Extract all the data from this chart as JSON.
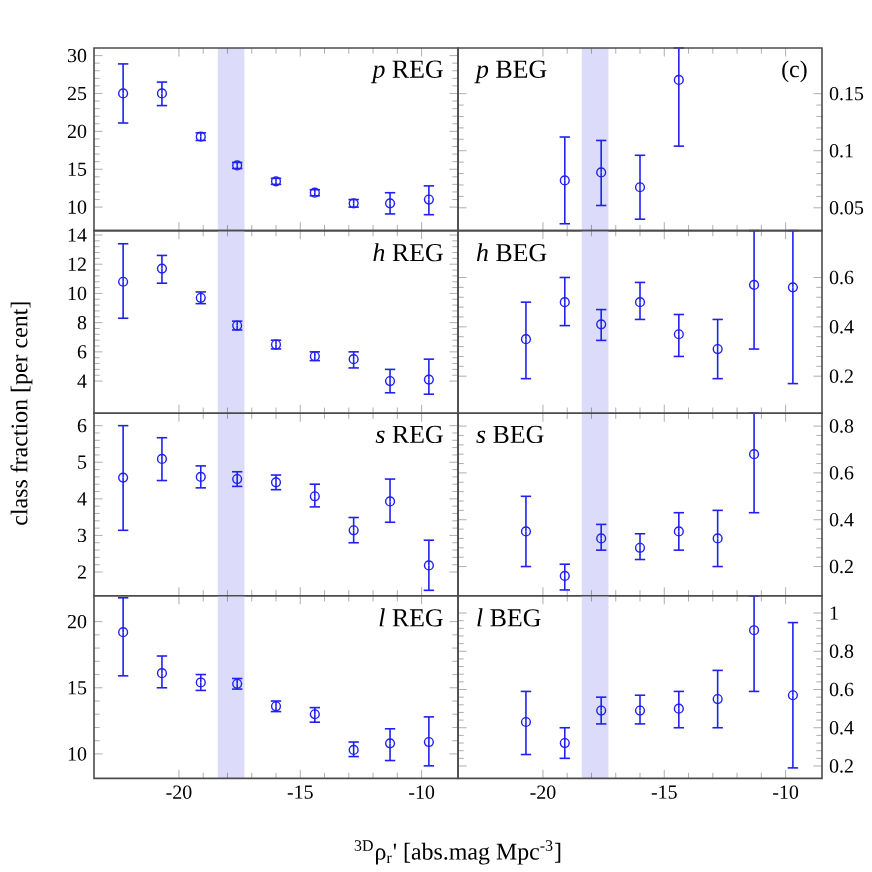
{
  "chart_data": [
    {
      "type": "scatter",
      "title": "*p* REG",
      "x": [
        -22.3,
        -20.7,
        -19.1,
        -17.6,
        -16.0,
        -14.4,
        -12.8,
        -11.3,
        -9.7
      ],
      "xlim": [
        -23.5,
        -8.5
      ],
      "xticks": [
        -20,
        -15,
        -10
      ],
      "ylim": [
        6.9,
        31
      ],
      "yticks": [
        10,
        15,
        20,
        25,
        30
      ],
      "tick_labels": "y",
      "marker": "circle",
      "bands": [
        {
          "axis": "x",
          "from": -18.4,
          "to": -17.3,
          "color": "#dcdcfa"
        }
      ],
      "series": [
        {
          "color": "#2020f0",
          "values": [
            25,
            25,
            19.3,
            15.5,
            13.4,
            11.9,
            10.5,
            10.5,
            11.0
          ],
          "errors": [
            [
              21.1,
              28.9
            ],
            [
              23.4,
              26.5
            ],
            [
              18.8,
              19.8
            ],
            [
              15.1,
              15.9
            ],
            [
              13.0,
              13.8
            ],
            [
              11.5,
              12.3
            ],
            [
              10.0,
              11.0
            ],
            [
              9.1,
              11.9
            ],
            [
              9.0,
              12.8
            ]
          ]
        }
      ]
    },
    {
      "type": "scatter",
      "title": "*p* BEG",
      "annotations": [
        "(c)"
      ],
      "xlim": [
        -23.5,
        -8.5
      ],
      "xticks": [
        -20,
        -15,
        -10
      ],
      "ylim": [
        0.03,
        0.19
      ],
      "yticks": [
        0.05,
        0.1,
        0.15
      ],
      "tick_labels": "y",
      "marker": "circle",
      "bands": [
        {
          "axis": "x",
          "from": -18.4,
          "to": -17.3,
          "color": "#dcdcfa"
        }
      ],
      "series": [
        {
          "color": "#2020f0",
          "x": [
            -19.1,
            -17.6,
            -16.0,
            -14.4
          ],
          "values": [
            0.074,
            0.081,
            0.068,
            0.162
          ],
          "errors": [
            [
              0.036,
              0.112
            ],
            [
              0.052,
              0.109
            ],
            [
              0.04,
              0.096
            ],
            [
              0.104,
              0.19
            ]
          ]
        }
      ]
    },
    {
      "type": "scatter",
      "title": "*h* REG",
      "ylabel": "class fraction [per cent]",
      "x": [
        -22.3,
        -20.7,
        -19.1,
        -17.6,
        -16.0,
        -14.4,
        -12.8,
        -11.3,
        -9.7
      ],
      "xlim": [
        -23.5,
        -8.5
      ],
      "xticks": [
        -20,
        -15,
        -10
      ],
      "ylim": [
        1.8,
        14.3
      ],
      "yticks": [
        4,
        6,
        8,
        10,
        12,
        14
      ],
      "tick_labels": "y",
      "marker": "circle",
      "bands": [
        {
          "axis": "x",
          "from": -18.4,
          "to": -17.3,
          "color": "#dcdcfa"
        }
      ],
      "series": [
        {
          "color": "#2020f0",
          "values": [
            10.8,
            11.7,
            9.7,
            7.8,
            6.5,
            5.7,
            5.5,
            4.0,
            4.1
          ],
          "errors": [
            [
              8.3,
              13.4
            ],
            [
              10.7,
              12.6
            ],
            [
              9.3,
              10.1
            ],
            [
              7.5,
              8.1
            ],
            [
              6.2,
              6.8
            ],
            [
              5.4,
              6.0
            ],
            [
              4.9,
              6.0
            ],
            [
              3.2,
              4.8
            ],
            [
              3.1,
              5.5
            ]
          ]
        }
      ]
    },
    {
      "type": "scatter",
      "title": "*h* BEG",
      "xlim": [
        -23.5,
        -8.5
      ],
      "xticks": [
        -20,
        -15,
        -10
      ],
      "ylim": [
        0.05,
        0.79
      ],
      "yticks": [
        0.2,
        0.4,
        0.6
      ],
      "tick_labels": "y",
      "marker": "circle",
      "bands": [
        {
          "axis": "x",
          "from": -18.4,
          "to": -17.3,
          "color": "#dcdcfa"
        }
      ],
      "series": [
        {
          "color": "#2020f0",
          "x": [
            -20.7,
            -19.1,
            -17.6,
            -16.0,
            -14.4,
            -12.8,
            -11.3,
            -9.7
          ],
          "values": [
            0.35,
            0.5,
            0.41,
            0.5,
            0.37,
            0.31,
            0.57,
            0.56
          ],
          "errors": [
            [
              0.19,
              0.5
            ],
            [
              0.405,
              0.6
            ],
            [
              0.345,
              0.47
            ],
            [
              0.43,
              0.58
            ],
            [
              0.28,
              0.45
            ],
            [
              0.19,
              0.43
            ],
            [
              0.31,
              0.79
            ],
            [
              0.17,
              0.79
            ]
          ]
        }
      ]
    },
    {
      "type": "scatter",
      "title": "*s* REG",
      "x": [
        -22.3,
        -20.7,
        -19.1,
        -17.6,
        -16.0,
        -14.4,
        -12.8,
        -11.3,
        -9.7
      ],
      "xlim": [
        -23.5,
        -8.5
      ],
      "xticks": [
        -20,
        -15,
        -10
      ],
      "ylim": [
        1.35,
        6.34
      ],
      "yticks": [
        2,
        3,
        4,
        5,
        6
      ],
      "tick_labels": "y",
      "marker": "circle",
      "bands": [
        {
          "axis": "x",
          "from": -18.4,
          "to": -17.3,
          "color": "#dcdcfa"
        }
      ],
      "series": [
        {
          "color": "#2020f0",
          "values": [
            4.58,
            5.09,
            4.6,
            4.54,
            4.45,
            4.07,
            3.14,
            3.93,
            2.18
          ],
          "errors": [
            [
              3.14,
              6.0
            ],
            [
              4.5,
              5.67
            ],
            [
              4.3,
              4.9
            ],
            [
              4.34,
              4.74
            ],
            [
              4.25,
              4.65
            ],
            [
              3.78,
              4.4
            ],
            [
              2.8,
              3.49
            ],
            [
              3.36,
              4.54
            ],
            [
              1.5,
              2.87
            ]
          ]
        }
      ]
    },
    {
      "type": "scatter",
      "title": "*s* BEG",
      "xlim": [
        -23.5,
        -8.5
      ],
      "xticks": [
        -20,
        -15,
        -10
      ],
      "ylim": [
        0.075,
        0.855
      ],
      "yticks": [
        0.2,
        0.4,
        0.6,
        0.8
      ],
      "tick_labels": "y",
      "marker": "circle",
      "bands": [
        {
          "axis": "x",
          "from": -18.4,
          "to": -17.3,
          "color": "#dcdcfa"
        }
      ],
      "series": [
        {
          "color": "#2020f0",
          "x": [
            -20.7,
            -19.1,
            -17.6,
            -16.0,
            -14.4,
            -12.8,
            -11.3
          ],
          "values": [
            0.35,
            0.16,
            0.32,
            0.28,
            0.35,
            0.32,
            0.68
          ],
          "errors": [
            [
              0.2,
              0.5
            ],
            [
              0.1,
              0.21
            ],
            [
              0.27,
              0.38
            ],
            [
              0.23,
              0.34
            ],
            [
              0.27,
              0.43
            ],
            [
              0.2,
              0.44
            ],
            [
              0.43,
              0.855
            ]
          ]
        }
      ]
    },
    {
      "type": "scatter",
      "title": "*l* REG",
      "xlabel": "$^{3D}$ρ$_{r}$' [abs.mag Mpc$^{-3}$]",
      "x": [
        -22.3,
        -20.7,
        -19.1,
        -17.6,
        -16.0,
        -14.4,
        -12.8,
        -11.3,
        -9.7
      ],
      "xlim": [
        -23.5,
        -8.5
      ],
      "xticks": [
        -20,
        -15,
        -10
      ],
      "ylim": [
        8.15,
        21.95
      ],
      "yticks": [
        10,
        15,
        20
      ],
      "marker": "circle",
      "bands": [
        {
          "axis": "x",
          "from": -18.4,
          "to": -17.3,
          "color": "#dcdcfa"
        }
      ],
      "series": [
        {
          "color": "#2020f0",
          "values": [
            19.2,
            16.1,
            15.4,
            15.3,
            13.6,
            13.0,
            10.3,
            10.8,
            10.9
          ],
          "errors": [
            [
              15.9,
              21.8
            ],
            [
              15.0,
              17.4
            ],
            [
              14.8,
              16.0
            ],
            [
              14.9,
              15.7
            ],
            [
              13.2,
              14.0
            ],
            [
              12.4,
              13.5
            ],
            [
              9.8,
              10.9
            ],
            [
              9.5,
              11.9
            ],
            [
              9.1,
              12.8
            ]
          ]
        }
      ]
    },
    {
      "type": "scatter",
      "title": "*l* BEG",
      "xlim": [
        -23.5,
        -8.5
      ],
      "xticks": [
        -20,
        -15,
        -10
      ],
      "ylim": [
        0.135,
        1.09
      ],
      "yticks": [
        0.2,
        0.4,
        0.6,
        0.8,
        1
      ],
      "marker": "circle",
      "bands": [
        {
          "axis": "x",
          "from": -18.4,
          "to": -17.3,
          "color": "#dcdcfa"
        }
      ],
      "series": [
        {
          "color": "#2020f0",
          "x": [
            -20.7,
            -19.1,
            -17.6,
            -16.0,
            -14.4,
            -12.8,
            -11.3,
            -9.7
          ],
          "values": [
            0.43,
            0.32,
            0.49,
            0.49,
            0.5,
            0.55,
            0.91,
            0.57
          ],
          "errors": [
            [
              0.26,
              0.59
            ],
            [
              0.24,
              0.4
            ],
            [
              0.42,
              0.56
            ],
            [
              0.42,
              0.57
            ],
            [
              0.4,
              0.59
            ],
            [
              0.4,
              0.7
            ],
            [
              0.59,
              1.09
            ],
            [
              0.19,
              0.95
            ]
          ]
        }
      ]
    }
  ]
}
